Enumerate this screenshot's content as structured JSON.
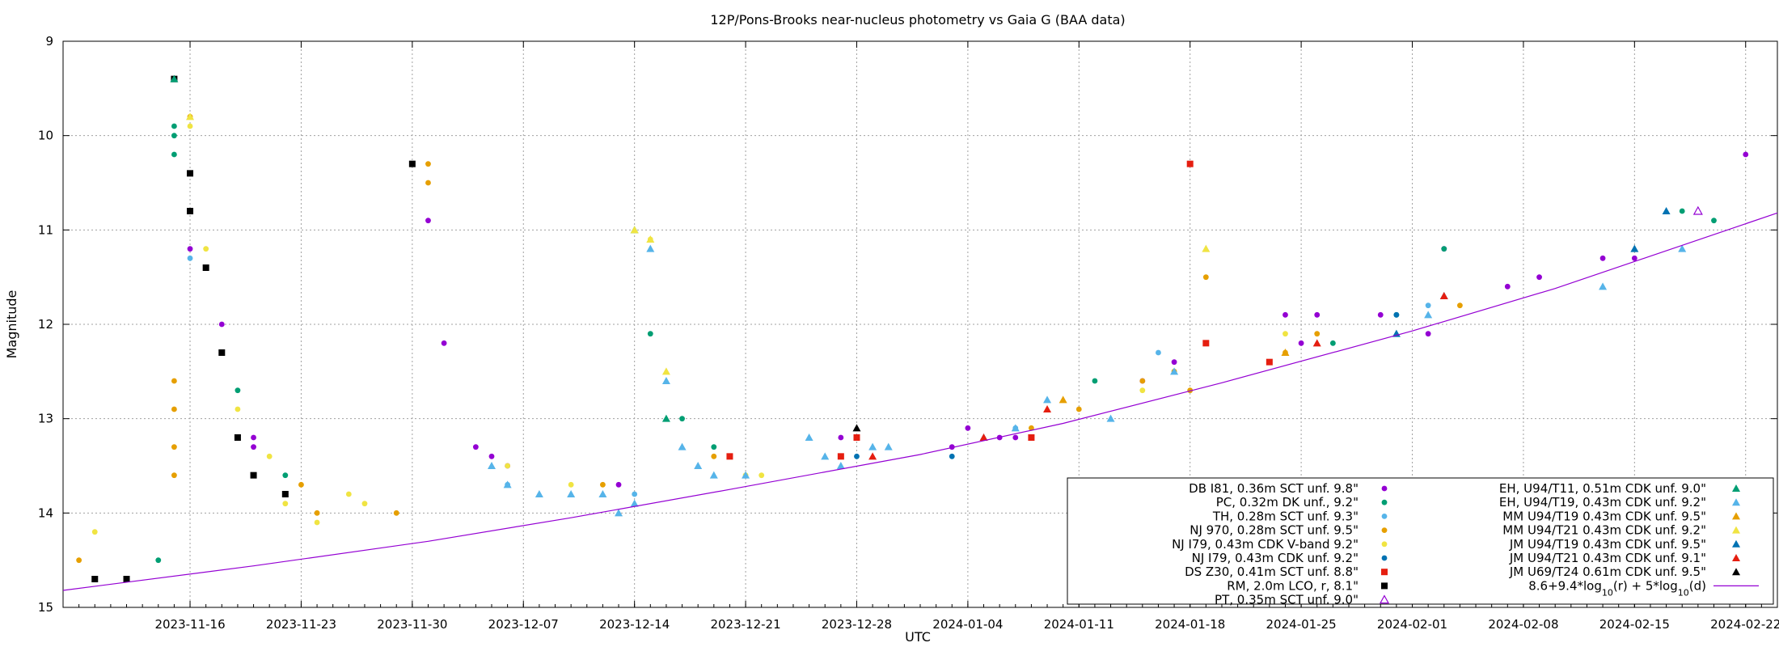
{
  "chart_data": {
    "type": "scatter",
    "title": "12P/Pons-Brooks near-nucleus photometry vs Gaia G (BAA data)",
    "xlabel": "UTC",
    "ylabel": "Magnitude",
    "xlim": [
      "2023-11-08",
      "2024-02-24"
    ],
    "ylim": [
      15,
      9
    ],
    "y_inverted": true,
    "grid": true,
    "legend_position": "bottom-right",
    "x_ticks": [
      "2023-11-16",
      "2023-11-23",
      "2023-11-30",
      "2023-12-07",
      "2023-12-14",
      "2023-12-21",
      "2023-12-28",
      "2024-01-04",
      "2024-01-11",
      "2024-01-18",
      "2024-01-25",
      "2024-02-01",
      "2024-02-08",
      "2024-02-15",
      "2024-02-22"
    ],
    "y_ticks": [
      9,
      10,
      11,
      12,
      13,
      14,
      15
    ],
    "series": [
      {
        "name": "DB I81, 0.36m SCT unf. 9.8\"",
        "color": "#9400d3",
        "marker": "dot",
        "points": [
          [
            "2023-11-16",
            11.2
          ],
          [
            "2023-11-18",
            12.0
          ],
          [
            "2023-11-20",
            13.2
          ],
          [
            "2023-11-20",
            13.3
          ],
          [
            "2023-12-01",
            10.9
          ],
          [
            "2023-12-02",
            12.2
          ],
          [
            "2023-12-04",
            13.3
          ],
          [
            "2023-12-05",
            13.4
          ],
          [
            "2023-12-06",
            13.5
          ],
          [
            "2023-12-13",
            13.7
          ],
          [
            "2023-12-27",
            13.2
          ],
          [
            "2024-01-03",
            13.3
          ],
          [
            "2024-01-04",
            13.1
          ],
          [
            "2024-01-06",
            13.2
          ],
          [
            "2024-01-07",
            13.2
          ],
          [
            "2024-01-15",
            12.6
          ],
          [
            "2024-01-17",
            12.4
          ],
          [
            "2024-01-24",
            11.9
          ],
          [
            "2024-01-25",
            12.2
          ],
          [
            "2024-01-26",
            11.9
          ],
          [
            "2024-01-30",
            11.9
          ],
          [
            "2024-02-02",
            12.1
          ],
          [
            "2024-02-03",
            11.2
          ],
          [
            "2024-02-07",
            11.6
          ],
          [
            "2024-02-09",
            11.5
          ],
          [
            "2024-02-13",
            11.3
          ],
          [
            "2024-02-15",
            11.3
          ],
          [
            "2024-02-22",
            10.2
          ]
        ]
      },
      {
        "name": "PC, 0.32m DK unf., 9.2\"",
        "color": "#009e73",
        "marker": "dot",
        "points": [
          [
            "2023-11-14",
            14.5
          ],
          [
            "2023-11-15",
            9.9
          ],
          [
            "2023-11-15",
            10.0
          ],
          [
            "2023-11-15",
            10.2
          ],
          [
            "2023-11-19",
            12.7
          ],
          [
            "2023-11-22",
            13.6
          ],
          [
            "2023-12-15",
            12.1
          ],
          [
            "2023-12-17",
            13.0
          ],
          [
            "2023-12-19",
            13.3
          ],
          [
            "2024-01-12",
            12.6
          ],
          [
            "2024-01-27",
            12.2
          ],
          [
            "2024-01-31",
            11.9
          ],
          [
            "2024-02-03",
            11.2
          ],
          [
            "2024-02-18",
            10.8
          ],
          [
            "2024-02-20",
            10.9
          ]
        ]
      },
      {
        "name": "TH, 0.28m SCT unf. 9.3\"",
        "color": "#56b4e9",
        "marker": "dot",
        "points": [
          [
            "2023-11-16",
            11.3
          ],
          [
            "2023-12-06",
            13.7
          ],
          [
            "2023-12-14",
            13.8
          ],
          [
            "2024-01-07",
            13.1
          ],
          [
            "2024-01-16",
            12.3
          ],
          [
            "2024-02-02",
            11.8
          ]
        ]
      },
      {
        "name": "NJ 970, 0.28m SCT unf. 9.5\"",
        "color": "#e69f00",
        "marker": "dot",
        "points": [
          [
            "2023-11-09",
            14.5
          ],
          [
            "2023-11-15",
            12.6
          ],
          [
            "2023-11-15",
            12.9
          ],
          [
            "2023-11-15",
            13.3
          ],
          [
            "2023-11-15",
            13.6
          ],
          [
            "2023-11-16",
            9.8
          ],
          [
            "2023-11-23",
            13.7
          ],
          [
            "2023-11-24",
            14.0
          ],
          [
            "2023-11-29",
            14.0
          ],
          [
            "2023-12-01",
            10.3
          ],
          [
            "2023-12-01",
            10.5
          ],
          [
            "2023-12-12",
            13.7
          ],
          [
            "2023-12-19",
            13.4
          ],
          [
            "2024-01-08",
            13.1
          ],
          [
            "2024-01-11",
            12.9
          ],
          [
            "2024-01-15",
            12.6
          ],
          [
            "2024-01-17",
            12.5
          ],
          [
            "2024-01-18",
            12.7
          ],
          [
            "2024-01-19",
            11.5
          ],
          [
            "2024-01-24",
            12.3
          ],
          [
            "2024-01-26",
            12.1
          ],
          [
            "2024-02-04",
            11.8
          ]
        ]
      },
      {
        "name": "NJ I79, 0.43m CDK V-band 9.2\"",
        "color": "#f0e442",
        "marker": "dot",
        "points": [
          [
            "2023-11-10",
            14.2
          ],
          [
            "2023-11-16",
            9.9
          ],
          [
            "2023-11-17",
            11.2
          ],
          [
            "2023-11-19",
            12.9
          ],
          [
            "2023-11-21",
            13.4
          ],
          [
            "2023-11-22",
            13.9
          ],
          [
            "2023-11-24",
            14.1
          ],
          [
            "2023-11-26",
            13.8
          ],
          [
            "2023-11-27",
            13.9
          ],
          [
            "2023-12-06",
            13.5
          ],
          [
            "2023-12-10",
            13.7
          ],
          [
            "2023-12-15",
            11.1
          ],
          [
            "2023-12-21",
            13.6
          ],
          [
            "2023-12-22",
            13.6
          ],
          [
            "2024-01-15",
            12.7
          ],
          [
            "2024-01-24",
            12.1
          ]
        ]
      },
      {
        "name": "NJ I79, 0.43m CDK unf. 9.2\"",
        "color": "#0072b2",
        "marker": "dot",
        "points": [
          [
            "2023-12-28",
            13.4
          ],
          [
            "2024-01-03",
            13.4
          ],
          [
            "2024-01-31",
            11.9
          ]
        ]
      },
      {
        "name": "DS Z30, 0.41m SCT unf. 8.8\"",
        "color": "#e51e10",
        "marker": "square",
        "points": [
          [
            "2023-12-20",
            13.4
          ],
          [
            "2023-12-27",
            13.4
          ],
          [
            "2023-12-28",
            13.2
          ],
          [
            "2024-01-08",
            13.2
          ],
          [
            "2024-01-18",
            10.3
          ],
          [
            "2024-01-19",
            12.2
          ],
          [
            "2024-01-23",
            12.4
          ]
        ]
      },
      {
        "name": "RM, 2.0m LCO, r, 8.1\"",
        "color": "#000000",
        "marker": "square",
        "points": [
          [
            "2023-11-10",
            14.7
          ],
          [
            "2023-11-12",
            14.7
          ],
          [
            "2023-11-15",
            9.4
          ],
          [
            "2023-11-16",
            10.4
          ],
          [
            "2023-11-16",
            10.8
          ],
          [
            "2023-11-17",
            11.4
          ],
          [
            "2023-11-18",
            12.3
          ],
          [
            "2023-11-19",
            13.2
          ],
          [
            "2023-11-20",
            13.6
          ],
          [
            "2023-11-22",
            13.8
          ],
          [
            "2023-11-30",
            10.3
          ]
        ]
      },
      {
        "name": "PT, 0.35m SCT unf. 9.0\"",
        "color": "#9400d3",
        "marker": "open-triangle",
        "points": [
          [
            "2024-02-19",
            10.8
          ]
        ]
      },
      {
        "name": "EH, U94/T11, 0.51m CDK unf. 9.0\"",
        "color": "#009e73",
        "marker": "triangle",
        "points": [
          [
            "2023-11-15",
            9.4
          ],
          [
            "2023-12-14",
            11.0
          ],
          [
            "2023-12-16",
            13.0
          ]
        ]
      },
      {
        "name": "EH, U94/T19, 0.43m CDK unf. 9.2\"",
        "color": "#56b4e9",
        "marker": "triangle",
        "points": [
          [
            "2023-12-05",
            13.5
          ],
          [
            "2023-12-06",
            13.7
          ],
          [
            "2023-12-08",
            13.8
          ],
          [
            "2023-12-10",
            13.8
          ],
          [
            "2023-12-12",
            13.8
          ],
          [
            "2023-12-13",
            14.0
          ],
          [
            "2023-12-14",
            13.9
          ],
          [
            "2023-12-15",
            11.2
          ],
          [
            "2023-12-16",
            12.6
          ],
          [
            "2023-12-17",
            13.3
          ],
          [
            "2023-12-18",
            13.5
          ],
          [
            "2023-12-19",
            13.6
          ],
          [
            "2023-12-21",
            13.6
          ],
          [
            "2023-12-25",
            13.2
          ],
          [
            "2023-12-26",
            13.4
          ],
          [
            "2023-12-27",
            13.5
          ],
          [
            "2023-12-29",
            13.3
          ],
          [
            "2023-12-30",
            13.3
          ],
          [
            "2024-01-05",
            13.2
          ],
          [
            "2024-01-07",
            13.1
          ],
          [
            "2024-01-09",
            12.8
          ],
          [
            "2024-01-13",
            13.0
          ],
          [
            "2024-01-17",
            12.5
          ],
          [
            "2024-02-02",
            11.9
          ],
          [
            "2024-02-13",
            11.6
          ],
          [
            "2024-02-18",
            11.2
          ]
        ]
      },
      {
        "name": "MM U94/T19 0.43m CDK unf. 9.5\"",
        "color": "#e69f00",
        "marker": "triangle",
        "points": [
          [
            "2024-01-10",
            12.8
          ],
          [
            "2024-01-24",
            12.3
          ]
        ]
      },
      {
        "name": "MM U94/T21 0.43m CDK unf. 9.2\"",
        "color": "#f0e442",
        "marker": "triangle",
        "points": [
          [
            "2023-11-16",
            9.8
          ],
          [
            "2023-12-14",
            11.0
          ],
          [
            "2023-12-15",
            11.1
          ],
          [
            "2023-12-16",
            12.5
          ],
          [
            "2024-01-19",
            11.2
          ]
        ]
      },
      {
        "name": "JM U94/T19 0.43m CDK unf. 9.5\"",
        "color": "#0072b2",
        "marker": "triangle",
        "points": [
          [
            "2024-01-31",
            12.1
          ],
          [
            "2024-02-03",
            11.7
          ],
          [
            "2024-02-15",
            11.2
          ],
          [
            "2024-02-17",
            10.8
          ]
        ]
      },
      {
        "name": "JM U94/T21 0.43m CDK unf. 9.1\"",
        "color": "#e51e10",
        "marker": "triangle",
        "points": [
          [
            "2023-12-29",
            13.4
          ],
          [
            "2024-01-05",
            13.2
          ],
          [
            "2024-01-09",
            12.9
          ],
          [
            "2024-01-26",
            12.2
          ],
          [
            "2024-02-03",
            11.7
          ]
        ]
      },
      {
        "name": "JM U69/T24 0.61m CDK unf. 9.5\"",
        "color": "#000000",
        "marker": "triangle",
        "points": [
          [
            "2023-12-28",
            13.1
          ]
        ]
      },
      {
        "name": "8.6+9.4*log10(r) + 5*log10(d)",
        "color": "#9400d3",
        "marker": "line",
        "points": [
          [
            "2023-11-08",
            14.82
          ],
          [
            "2023-11-20",
            14.56
          ],
          [
            "2023-12-01",
            14.3
          ],
          [
            "2023-12-10",
            14.05
          ],
          [
            "2023-12-20",
            13.75
          ],
          [
            "2024-01-01",
            13.38
          ],
          [
            "2024-01-10",
            13.05
          ],
          [
            "2024-01-20",
            12.62
          ],
          [
            "2024-02-01",
            12.07
          ],
          [
            "2024-02-10",
            11.62
          ],
          [
            "2024-02-24",
            10.82
          ]
        ]
      }
    ],
    "legend_label_parts": [
      {
        "main": "DB I81, 0.36m SCT unf. 9.8\""
      },
      {
        "main": "PC, 0.32m DK unf., 9.2\""
      },
      {
        "main": "TH, 0.28m SCT unf. 9.3\""
      },
      {
        "main": "NJ 970, 0.28m SCT unf. 9.5\""
      },
      {
        "main": "NJ I79, 0.43m CDK V-band 9.2\""
      },
      {
        "main": "NJ I79, 0.43m CDK unf. 9.2\""
      },
      {
        "main": "DS Z30, 0.41m SCT unf. 8.8\""
      },
      {
        "main": "RM, 2.0m LCO, r, 8.1\""
      },
      {
        "main": "PT, 0.35m SCT unf. 9.0\""
      },
      {
        "main": "EH, U94/T11, 0.51m CDK unf. 9.0\""
      },
      {
        "main": "EH, U94/T19, 0.43m CDK unf. 9.2\""
      },
      {
        "main": "MM U94/T19 0.43m CDK unf. 9.5\""
      },
      {
        "main": "MM U94/T21 0.43m CDK unf. 9.2\""
      },
      {
        "main": "JM U94/T19 0.43m CDK unf. 9.5\""
      },
      {
        "main": "JM U94/T21 0.43m CDK unf. 9.1\""
      },
      {
        "main": "JM U69/T24 0.61m CDK unf. 9.5\""
      },
      {
        "segments": [
          [
            "8.6+9.4*log",
            ""
          ],
          [
            "10",
            "sub"
          ],
          [
            "(r) + 5*log",
            ""
          ],
          [
            "10",
            "sub"
          ],
          [
            "(d)",
            ""
          ]
        ]
      }
    ]
  }
}
